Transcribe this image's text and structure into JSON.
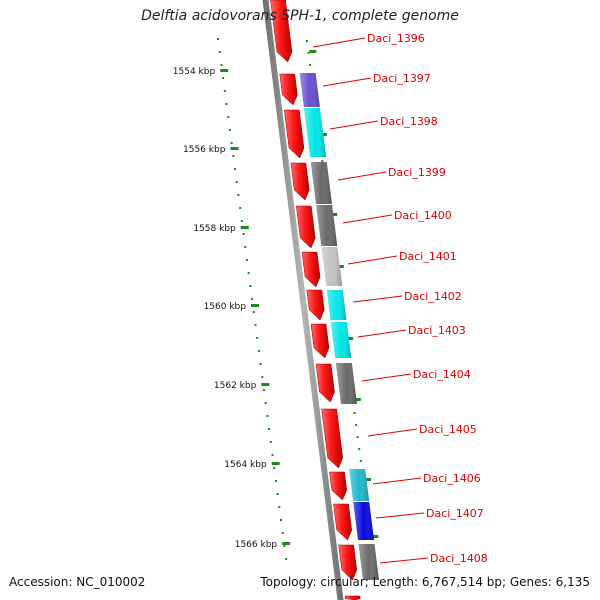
{
  "title": "Delftia acidovorans SPH-1, complete genome",
  "footer": {
    "accession": "Accession: NC_010002",
    "summary": "Topology: circular; Length: 6,767,514 bp; Genes: 6,135"
  },
  "scale": {
    "unit": "kbp",
    "labels": [
      "1554 kbp",
      "1556 kbp",
      "1558 kbp",
      "1560 kbp",
      "1562 kbp",
      "1564 kbp",
      "1566 kbp"
    ]
  },
  "colors": {
    "backbone": "#8a8a8a",
    "tick": "#1e8a1e",
    "label": "#dd0000",
    "cds": "#ee1111"
  },
  "genes": [
    {
      "label": "Daci_1396",
      "feature_color": null
    },
    {
      "label": "Daci_1397",
      "feature_color": "#6a4fd0"
    },
    {
      "label": "Daci_1398",
      "feature_color": "#00e6e6"
    },
    {
      "label": "Daci_1399",
      "feature_color": "#6a6a6a"
    },
    {
      "label": "Daci_1400",
      "feature_color": "#6a6a6a"
    },
    {
      "label": "Daci_1401",
      "feature_color": "#c0c0c0"
    },
    {
      "label": "Daci_1402",
      "feature_color": "#00e6e6"
    },
    {
      "label": "Daci_1403",
      "feature_color": "#00e6e6"
    },
    {
      "label": "Daci_1404",
      "feature_color": "#6a6a6a"
    },
    {
      "label": "Daci_1405",
      "feature_color": null
    },
    {
      "label": "Daci_1406",
      "feature_color": "#1fb8c8"
    },
    {
      "label": "Daci_1407",
      "feature_color": "#0a0adc"
    },
    {
      "label": "Daci_1408",
      "feature_color": "#6a6a6a"
    }
  ]
}
